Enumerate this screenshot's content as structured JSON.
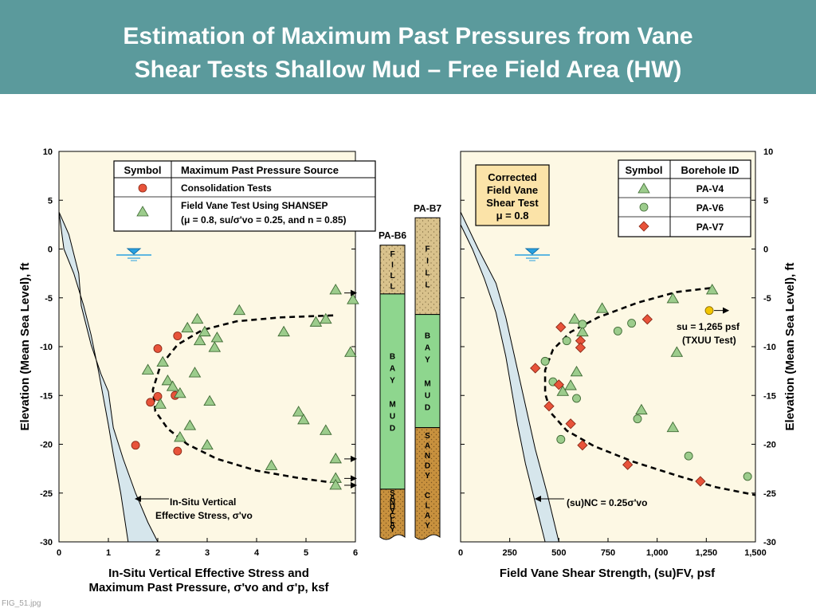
{
  "slide": {
    "title_line1": "Estimation of Maximum Past Pressures from Vane",
    "title_line2": "Shear Tests Shallow Mud – Free Field Area (HW)",
    "footer_label": "FIG_51.jpg",
    "colors": {
      "title_bar": "#5b9a9c",
      "plot_bg": "#fdf8e4",
      "in_situ_band": "#d6e6ec",
      "consolidation_marker": "#e8533a",
      "shansep_marker": "#9ccc8c",
      "pa_v4_marker": "#9ccc8c",
      "pa_v6_marker": "#9ccc8c",
      "pa_v7_marker": "#e8533a",
      "txuu_marker": "#f2c500",
      "fill_layer": "#d9c28c",
      "bay_mud_layer": "#8ed68e",
      "sandy_clay_layer": "#c8913e"
    }
  },
  "chart_data": [
    {
      "type": "scatter",
      "panel": "left",
      "xlabel_line1": "In-Situ Vertical Effective Stress and",
      "xlabel_line2": "Maximum Past Pressure, σ'vo and σ'p, ksf",
      "ylabel": "Elevation (Mean Sea Level), ft",
      "xlim": [
        0,
        6
      ],
      "ylim": [
        -30,
        10
      ],
      "x_ticks": [
        "0",
        "1",
        "2",
        "3",
        "4",
        "5",
        "6"
      ],
      "y_ticks": [
        "10",
        "5",
        "0",
        "-5",
        "-10",
        "-15",
        "-20",
        "-25",
        "-30"
      ],
      "legend": {
        "header_symbol": "Symbol",
        "header_source": "Maximum Past Pressure Source",
        "items": [
          {
            "marker": "circle",
            "label": "Consolidation Tests"
          },
          {
            "marker": "triangle",
            "label_line1": "Field Vane Test Using SHANSEP",
            "label_line2": "(μ = 0.8, su/σ'vo = 0.25, and n = 0.85)"
          }
        ]
      },
      "series": [
        {
          "name": "Consolidation Tests",
          "marker": "circle",
          "points": [
            [
              1.55,
              -20.1
            ],
            [
              1.85,
              -15.7
            ],
            [
              2.0,
              -15.1
            ],
            [
              2.0,
              -10.2
            ],
            [
              2.35,
              -15.0
            ],
            [
              2.4,
              -8.9
            ],
            [
              2.4,
              -20.7
            ]
          ]
        },
        {
          "name": "Field Vane Test Using SHANSEP",
          "marker": "triangle",
          "points": [
            [
              1.8,
              -12.4
            ],
            [
              2.05,
              -15.9
            ],
            [
              2.1,
              -11.6
            ],
            [
              2.2,
              -13.5
            ],
            [
              2.3,
              -14.1
            ],
            [
              2.45,
              -14.8
            ],
            [
              2.45,
              -19.3
            ],
            [
              2.6,
              -8.1
            ],
            [
              2.65,
              -18.1
            ],
            [
              2.75,
              -12.7
            ],
            [
              2.8,
              -7.2
            ],
            [
              2.85,
              -9.4
            ],
            [
              2.95,
              -8.5
            ],
            [
              3.0,
              -20.1
            ],
            [
              3.05,
              -15.6
            ],
            [
              3.15,
              -10.1
            ],
            [
              3.2,
              -9.1
            ],
            [
              3.65,
              -6.3
            ],
            [
              4.3,
              -22.2
            ],
            [
              4.55,
              -8.5
            ],
            [
              4.85,
              -16.7
            ],
            [
              4.95,
              -17.5
            ],
            [
              5.2,
              -7.5
            ],
            [
              5.4,
              -7.2
            ],
            [
              5.4,
              -18.6
            ],
            [
              5.6,
              -4.2
            ],
            [
              5.6,
              -21.5
            ],
            [
              5.6,
              -23.5
            ],
            [
              5.6,
              -24.2
            ],
            [
              5.9,
              -10.6
            ],
            [
              5.95,
              -5.2
            ]
          ]
        }
      ],
      "annotations": [
        {
          "label_line1": "In-Situ Vertical",
          "label_line2": "Effective Stress, σ'vo"
        }
      ]
    },
    {
      "type": "scatter",
      "panel": "right",
      "xlabel": "Field Vane Shear Strength, (su)FV, psf",
      "ylabel": "Elevation (Mean Sea Level), ft",
      "xlim": [
        0,
        1500
      ],
      "ylim": [
        -30,
        10
      ],
      "x_ticks": [
        "0",
        "250",
        "500",
        "750",
        "1,000",
        "1,250",
        "1,500"
      ],
      "y_ticks": [
        "10",
        "5",
        "0",
        "-5",
        "-10",
        "-15",
        "-20",
        "-25",
        "-30"
      ],
      "corrected_box": {
        "line1": "Corrected",
        "line2": "Field Vane",
        "line3": "Shear Test",
        "line4": "μ = 0.8"
      },
      "legend": {
        "header_symbol": "Symbol",
        "header_id": "Borehole ID",
        "items": [
          {
            "marker": "triangle",
            "label": "PA-V4"
          },
          {
            "marker": "circle",
            "label": "PA-V6"
          },
          {
            "marker": "diamond",
            "label": "PA-V7"
          }
        ]
      },
      "series": [
        {
          "name": "PA-V4",
          "marker": "triangle",
          "points": [
            [
              520,
              -14.6
            ],
            [
              560,
              -14.0
            ],
            [
              580,
              -7.2
            ],
            [
              590,
              -12.6
            ],
            [
              620,
              -8.5
            ],
            [
              720,
              -6.1
            ],
            [
              920,
              -16.5
            ],
            [
              1080,
              -18.3
            ],
            [
              1080,
              -5.1
            ],
            [
              1100,
              -10.6
            ],
            [
              1280,
              -4.2
            ]
          ]
        },
        {
          "name": "PA-V6",
          "marker": "circle",
          "points": [
            [
              430,
              -11.5
            ],
            [
              470,
              -13.6
            ],
            [
              510,
              -19.5
            ],
            [
              540,
              -9.4
            ],
            [
              590,
              -15.3
            ],
            [
              620,
              -7.7
            ],
            [
              800,
              -8.4
            ],
            [
              870,
              -7.6
            ],
            [
              900,
              -17.4
            ],
            [
              1160,
              -21.2
            ],
            [
              1460,
              -23.3
            ]
          ]
        },
        {
          "name": "PA-V7",
          "marker": "diamond",
          "points": [
            [
              380,
              -12.2
            ],
            [
              450,
              -16.1
            ],
            [
              500,
              -13.9
            ],
            [
              510,
              -8.0
            ],
            [
              560,
              -17.9
            ],
            [
              610,
              -9.4
            ],
            [
              610,
              -10.1
            ],
            [
              620,
              -20.1
            ],
            [
              850,
              -22.1
            ],
            [
              950,
              -7.2
            ],
            [
              1220,
              -23.8
            ]
          ]
        },
        {
          "name": "TXUU Test",
          "marker": "circle",
          "points": [
            [
              1265,
              -6.3
            ]
          ]
        }
      ],
      "annotations": [
        {
          "label": "(su)NC = 0.25σ'vo"
        },
        {
          "label_line1": "su = 1,265 psf",
          "label_line2": "(TXUU Test)"
        }
      ]
    },
    {
      "type": "table",
      "panel": "boring-logs",
      "borings": [
        {
          "name": "PA-B6",
          "top_elev": 0.4,
          "layers": [
            {
              "name": "FILL",
              "letters": [
                "F",
                "I",
                "L",
                "L"
              ],
              "top": 0.4,
              "bottom": -4.6
            },
            {
              "name": "BAY MUD",
              "letters": [
                "B",
                "A",
                "Y",
                "",
                "M",
                "U",
                "D"
              ],
              "top": -4.6,
              "bottom": -24.6
            },
            {
              "name": "SANDY CLAY",
              "letters": [
                "S",
                "A",
                "N",
                "D",
                "Y",
                "C",
                "L",
                "A",
                "Y"
              ],
              "top": -24.6,
              "bottom": -30
            }
          ]
        },
        {
          "name": "PA-B7",
          "top_elev": 3.2,
          "layers": [
            {
              "name": "FILL",
              "letters": [
                "F",
                "I",
                "L",
                "L"
              ],
              "top": 3.2,
              "bottom": -6.7
            },
            {
              "name": "BAY MUD",
              "letters": [
                "B",
                "A",
                "Y",
                "",
                "M",
                "U",
                "D"
              ],
              "top": -6.7,
              "bottom": -18.3
            },
            {
              "name": "SANDY CLAY",
              "letters": [
                "S",
                "A",
                "N",
                "D",
                "Y",
                "",
                "C",
                "L",
                "A",
                "Y"
              ],
              "top": -18.3,
              "bottom": -30
            }
          ]
        }
      ]
    }
  ]
}
